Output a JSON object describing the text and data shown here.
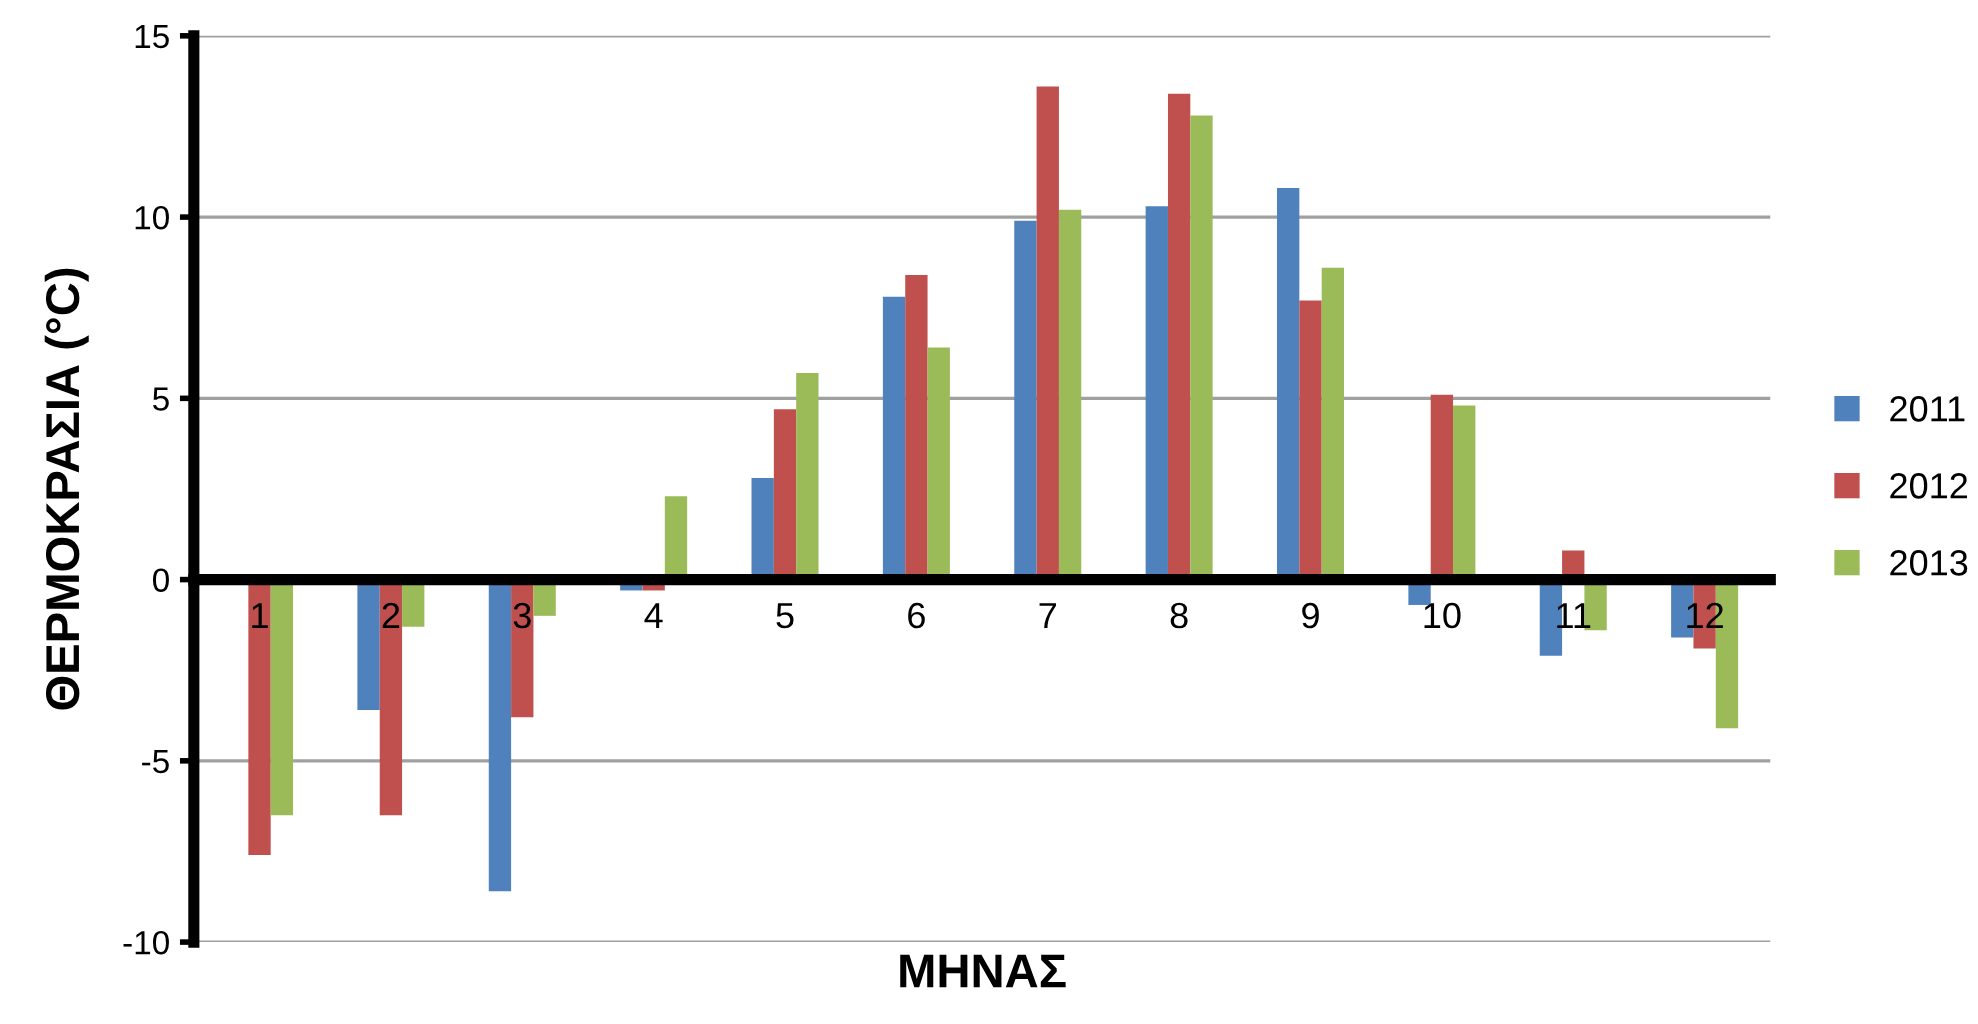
{
  "chart_data": {
    "type": "bar",
    "xlabel": "ΜΗΝΑΣ",
    "ylabel": "ΘΕΡΜΟΚΡΑΣΙΑ (°C)",
    "categories": [
      "1",
      "2",
      "3",
      "4",
      "5",
      "6",
      "7",
      "8",
      "9",
      "10",
      "11",
      "12"
    ],
    "series": [
      {
        "name": "2011",
        "color": "#4f81bd",
        "values": [
          null,
          -3.6,
          -8.6,
          -0.3,
          2.8,
          7.8,
          9.9,
          10.3,
          10.8,
          -0.7,
          -2.1,
          -1.6
        ]
      },
      {
        "name": "2012",
        "color": "#c0504d",
        "values": [
          -7.6,
          -6.5,
          -3.8,
          -0.3,
          4.7,
          8.4,
          13.6,
          13.4,
          7.7,
          5.1,
          0.8,
          -1.9
        ]
      },
      {
        "name": "2013",
        "color": "#9bbb59",
        "values": [
          -6.5,
          -1.3,
          -1.0,
          2.3,
          5.7,
          6.4,
          10.2,
          12.8,
          8.6,
          4.8,
          -1.4,
          -4.1
        ]
      }
    ],
    "ylim": [
      -10,
      15
    ],
    "yticks": [
      -10,
      -5,
      0,
      5,
      10,
      15
    ],
    "grid": "y",
    "legend": "right"
  }
}
